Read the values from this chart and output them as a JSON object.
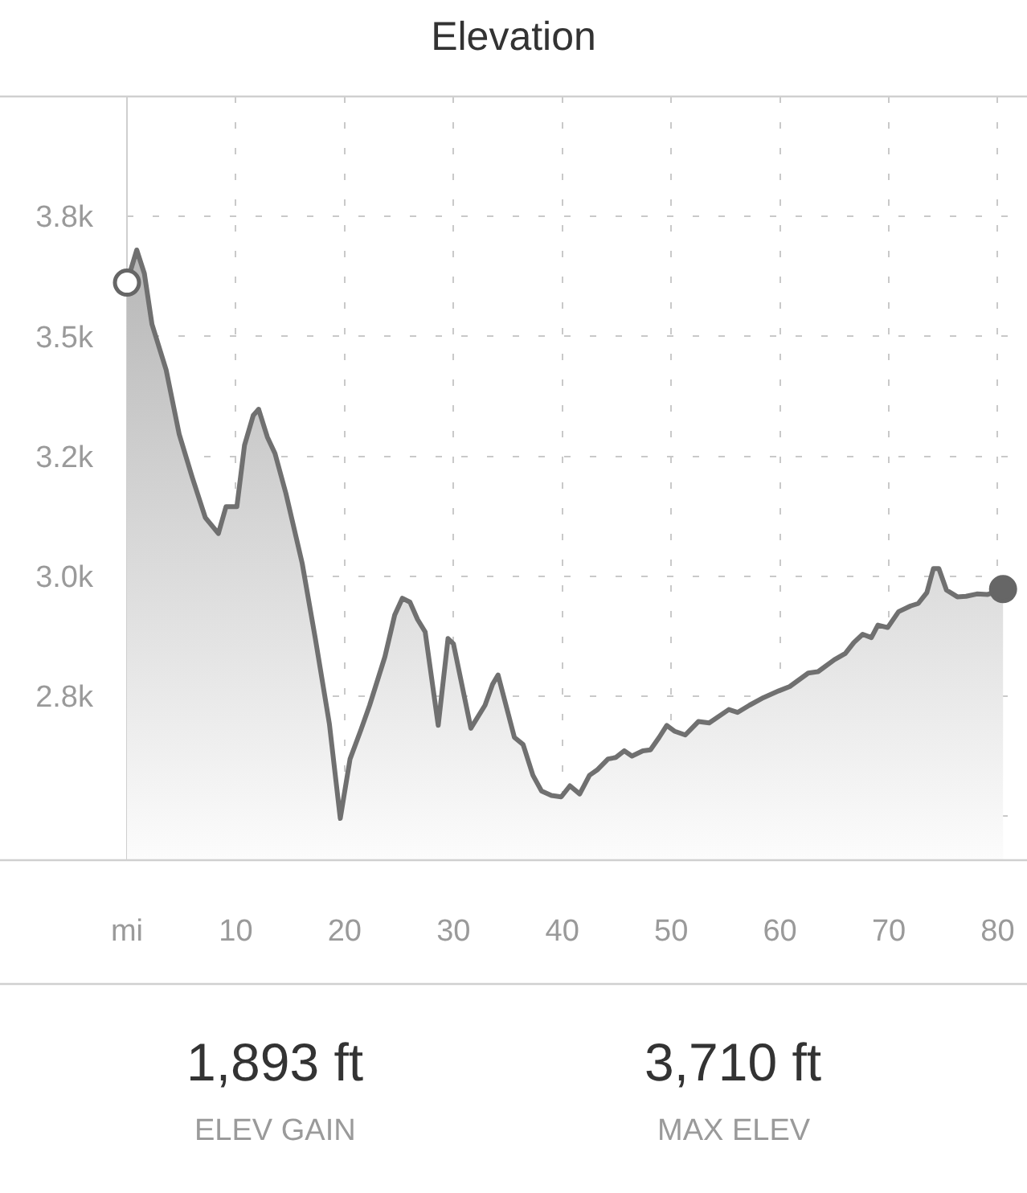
{
  "chart_data": {
    "type": "area",
    "title": "Elevation",
    "xlim": [
      0,
      82.7
    ],
    "xticks": [
      {
        "value": 0,
        "label": "mi"
      },
      10,
      20,
      30,
      40,
      50,
      60,
      70,
      80
    ],
    "ylim": [
      2408,
      4000
    ],
    "yticks": [
      {
        "value": 2500,
        "label": null
      },
      {
        "value": 2750,
        "label": "2.8k"
      },
      {
        "value": 3000,
        "label": "3.0k"
      },
      {
        "value": 3250,
        "label": "3.2k"
      },
      {
        "value": 3500,
        "label": "3.5k"
      },
      {
        "value": 3750,
        "label": "3.8k"
      }
    ],
    "grid": true,
    "series": [
      {
        "color": "#707070",
        "x": [
          0,
          0.9,
          1.6,
          2.3,
          3.6,
          4.8,
          6.0,
          7.2,
          8.4,
          9.1,
          10.1,
          10.8,
          11.6,
          12.1,
          12.9,
          13.6,
          14.6,
          16.1,
          17.3,
          18.6,
          19.6,
          20.5,
          21.5,
          22.3,
          23.7,
          24.6,
          25.3,
          26.0,
          26.7,
          27.4,
          28.6,
          29.5,
          30.0,
          31.6,
          32.9,
          33.6,
          34.1,
          35.6,
          36.4,
          37.3,
          38.1,
          39.0,
          39.9,
          40.7,
          41.6,
          42.5,
          43.2,
          44.2,
          44.9,
          45.7,
          46.4,
          47.4,
          48.1,
          48.9,
          49.6,
          50.3,
          51.3,
          52.5,
          53.5,
          55.3,
          56.1,
          57.2,
          58.5,
          59.9,
          60.9,
          62.6,
          63.5,
          65.0,
          66.0,
          66.8,
          67.6,
          68.4,
          69.0,
          69.9,
          70.9,
          72.0,
          72.7,
          73.5,
          74.1,
          74.6,
          75.3,
          76.3,
          77.1,
          78.1,
          79.1,
          80.5
        ],
        "values": [
          3612,
          3680,
          3631,
          3525,
          3430,
          3296,
          3206,
          3122,
          3089,
          3145,
          3145,
          3273,
          3335,
          3348,
          3290,
          3256,
          3173,
          3027,
          2871,
          2692,
          2495,
          2619,
          2680,
          2731,
          2832,
          2919,
          2954,
          2946,
          2910,
          2884,
          2689,
          2870,
          2859,
          2683,
          2731,
          2775,
          2794,
          2664,
          2649,
          2585,
          2552,
          2543,
          2540,
          2563,
          2546,
          2585,
          2596,
          2619,
          2622,
          2636,
          2625,
          2636,
          2638,
          2664,
          2689,
          2677,
          2669,
          2697,
          2694,
          2722,
          2716,
          2731,
          2747,
          2761,
          2770,
          2798,
          2801,
          2826,
          2839,
          2862,
          2879,
          2872,
          2898,
          2893,
          2926,
          2938,
          2943,
          2966,
          3016,
          3016,
          2971,
          2957,
          2958,
          2963,
          2962,
          2973
        ]
      },
      {
        "type": "scatter",
        "color": "#666666",
        "colors": [
          "#ffffff",
          "#666666"
        ],
        "marker": "circle",
        "x": [
          0,
          80.5
        ],
        "values": [
          3612,
          2973
        ]
      }
    ],
    "annotations": [
      "1,893 ft",
      "ELEV GAIN",
      "3,710 ft",
      "MAX ELEV"
    ]
  }
}
